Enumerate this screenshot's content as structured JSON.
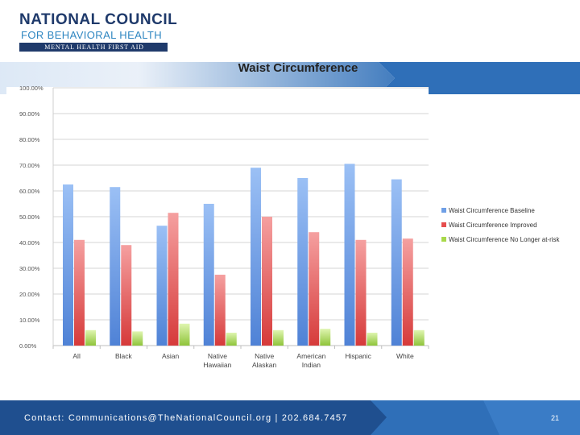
{
  "header": {
    "org_line1": "NATIONAL COUNCIL",
    "org_line2": "FOR BEHAVIORAL HEALTH",
    "org_line3": "MENTAL HEALTH FIRST AID"
  },
  "chart_data": {
    "type": "bar",
    "title": "Waist Circumference",
    "xlabel": "",
    "ylabel": "",
    "ylim": [
      0,
      100
    ],
    "ytick_labels": [
      "0.00%",
      "10.00%",
      "20.00%",
      "30.00%",
      "40.00%",
      "50.00%",
      "60.00%",
      "70.00%",
      "80.00%",
      "90.00%",
      "100.00%"
    ],
    "categories": [
      "All",
      "Black",
      "Asian",
      "Native Hawaiian",
      "Native Alaskan",
      "American Indian",
      "Hispanic",
      "White"
    ],
    "series": [
      {
        "name": "Waist Circumference Baseline",
        "color": "#6f9fe6",
        "values": [
          62.5,
          61.5,
          46.5,
          55,
          69,
          65,
          70.5,
          64.5
        ]
      },
      {
        "name": "Waist Circumference Improved",
        "color": "#e64d4d",
        "values": [
          41,
          39,
          51.5,
          27.5,
          50,
          44,
          41,
          41.5
        ]
      },
      {
        "name": "Waist Circumference No Longer at-risk",
        "color": "#a8d94a",
        "values": [
          6,
          5.5,
          8.5,
          5,
          6,
          6.5,
          5,
          6
        ]
      }
    ],
    "grid": true,
    "legend": "right"
  },
  "footer": {
    "contact": "Contact: Communications@TheNationalCouncil.org  |  202.684.7457",
    "page_number": "21"
  },
  "colors": {
    "navy": "#1f3a6b",
    "brand_blue": "#2e86c1",
    "band_blue": "#2f6fb8"
  }
}
